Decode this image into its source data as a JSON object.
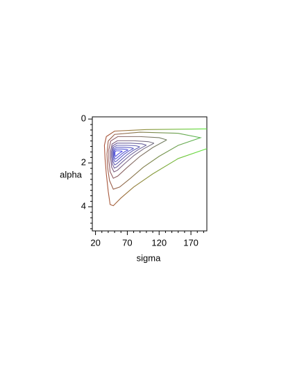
{
  "chart_data": {
    "type": "contour",
    "xlabel": "sigma",
    "ylabel": "alpha",
    "xlim": [
      15,
      195
    ],
    "ylim": [
      5.1,
      -0.1
    ],
    "xticks": [
      20,
      70,
      120,
      170
    ],
    "yticks": [
      0,
      2,
      4
    ],
    "xminorticks": [
      30,
      40,
      50,
      60,
      80,
      90,
      100,
      110,
      130,
      140,
      150,
      160,
      180,
      190
    ],
    "yminorticks": [
      0.25,
      0.5,
      0.75,
      1,
      1.25,
      1.5,
      1.75,
      2.25,
      2.5,
      2.75,
      3,
      3.25,
      3.5,
      3.75,
      4.25,
      4.5,
      4.75,
      5
    ],
    "series": [
      {
        "colors": [
          "#b4403a",
          "#5ee83c"
        ],
        "x": [
          195,
          150,
          110,
          80,
          60,
          48,
          43,
          40,
          37,
          35,
          34,
          37,
          50,
          100,
          195
        ],
        "values": [
          1.35,
          1.8,
          2.5,
          3.1,
          3.6,
          3.95,
          3.9,
          3.3,
          2.5,
          1.8,
          1.2,
          0.8,
          0.55,
          0.48,
          0.45
        ]
      },
      {
        "colors": [
          "#a84a48",
          "#55c050"
        ],
        "x": [
          40,
          50,
          90,
          150,
          185,
          150,
          120,
          95,
          75,
          58,
          48,
          42,
          39,
          38,
          40
        ],
        "values": [
          1.0,
          0.7,
          0.6,
          0.65,
          0.85,
          1.2,
          1.7,
          2.2,
          2.7,
          3.1,
          3.2,
          2.8,
          2.2,
          1.6,
          1.0
        ]
      },
      {
        "colors": [
          "#9a4e62",
          "#5e9e62"
        ],
        "x": [
          132,
          110,
          90,
          70,
          55,
          48,
          43,
          41,
          41,
          44,
          55,
          90,
          120,
          132
        ],
        "values": [
          0.95,
          1.3,
          1.7,
          2.2,
          2.6,
          2.7,
          2.4,
          1.9,
          1.4,
          1.0,
          0.8,
          0.8,
          0.85,
          0.95
        ]
      },
      {
        "colors": [
          "#85567e",
          "#6a8a88"
        ],
        "x": [
          112,
          95.5,
          80.5,
          65.5,
          54.3,
          49,
          45.3,
          43.8,
          43.8,
          46,
          54.3,
          80.5,
          103,
          112
        ],
        "values": [
          1.1,
          1.36,
          1.66,
          2.04,
          2.34,
          2.41,
          2.19,
          1.81,
          1.44,
          1.14,
          0.99,
          0.99,
          1.03,
          1.1
        ]
      },
      {
        "colors": [
          "#725a98",
          "#6a78a8"
        ],
        "x": [
          100,
          86.8,
          74.8,
          62.8,
          53.8,
          49.6,
          46.6,
          45.4,
          45.4,
          47.2,
          53.8,
          74.8,
          92.8,
          100
        ],
        "values": [
          1.19,
          1.4,
          1.64,
          1.94,
          2.18,
          2.24,
          2.06,
          1.76,
          1.46,
          1.22,
          1.1,
          1.1,
          1.13,
          1.19
        ]
      },
      {
        "colors": [
          "#665cb0",
          "#6470bc"
        ],
        "x": [
          89.6,
          79.3,
          69.9,
          60.5,
          53.4,
          50.1,
          47.8,
          46.8,
          46.8,
          48.2,
          53.4,
          69.9,
          84,
          89.6
        ],
        "values": [
          1.27,
          1.43,
          1.62,
          1.86,
          2.04,
          2.09,
          1.95,
          1.71,
          1.48,
          1.29,
          1.2,
          1.2,
          1.22,
          1.27
        ]
      },
      {
        "colors": [
          "#5e5cc4",
          "#5e66cc"
        ],
        "x": [
          80,
          72.3,
          65.3,
          58.3,
          53,
          50.6,
          48.9,
          48.2,
          48.2,
          49.2,
          53,
          65.3,
          75.8,
          80
        ],
        "values": [
          1.34,
          1.46,
          1.6,
          1.78,
          1.92,
          1.95,
          1.85,
          1.67,
          1.5,
          1.36,
          1.29,
          1.29,
          1.31,
          1.34
        ]
      },
      {
        "colors": [
          "#5858d4",
          "#585ed8"
        ],
        "x": [
          71.2,
          65.9,
          61.1,
          56.3,
          52.7,
          51,
          49.8,
          49.4,
          49.4,
          50.1,
          52.7,
          61.1,
          68.3,
          71.2
        ],
        "values": [
          1.41,
          1.49,
          1.59,
          1.71,
          1.8,
          1.83,
          1.75,
          1.63,
          1.51,
          1.42,
          1.37,
          1.37,
          1.38,
          1.41
        ]
      },
      {
        "colors": [
          "#5050e2",
          "#5054e4"
        ],
        "x": [
          62.4,
          59.5,
          56.9,
          54.3,
          52.4,
          51.5,
          50.8,
          50.6,
          50.6,
          51,
          52.4,
          56.9,
          60.8,
          62.4
        ],
        "values": [
          1.47,
          1.52,
          1.57,
          1.63,
          1.69,
          1.7,
          1.66,
          1.6,
          1.53,
          1.48,
          1.45,
          1.45,
          1.46,
          1.47
        ]
      }
    ]
  }
}
